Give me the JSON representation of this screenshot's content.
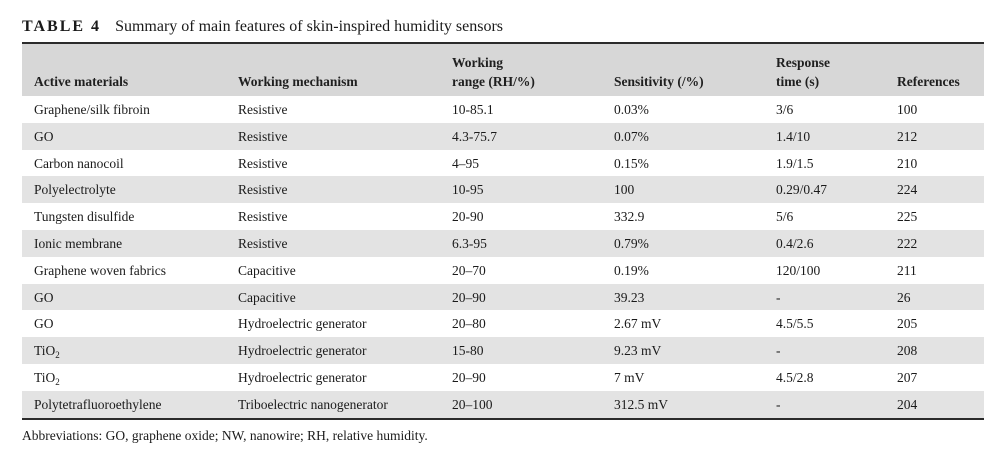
{
  "caption": {
    "label": "TABLE 4",
    "title": "Summary of main features of skin-inspired humidity sensors"
  },
  "headers": {
    "active_materials": "Active materials",
    "working_mechanism": "Working mechanism",
    "working_range_line1": "Working",
    "working_range_line2": "range (RH/%)",
    "sensitivity": "Sensitivity (/%)",
    "response_line1": "Response",
    "response_line2": "time (s)",
    "references": "References"
  },
  "rows": [
    {
      "material": "Graphene/silk fibroin",
      "material_sub": "",
      "mechanism": "Resistive",
      "range": "10-85.1",
      "sensitivity": "0.03%",
      "response": "3/6",
      "ref": "100"
    },
    {
      "material": "GO",
      "material_sub": "",
      "mechanism": "Resistive",
      "range": "4.3-75.7",
      "sensitivity": "0.07%",
      "response": "1.4/10",
      "ref": "212"
    },
    {
      "material": "Carbon nanocoil",
      "material_sub": "",
      "mechanism": "Resistive",
      "range": "4–95",
      "sensitivity": "0.15%",
      "response": "1.9/1.5",
      "ref": "210"
    },
    {
      "material": "Polyelectrolyte",
      "material_sub": "",
      "mechanism": "Resistive",
      "range": "10-95",
      "sensitivity": "100",
      "response": "0.29/0.47",
      "ref": "224"
    },
    {
      "material": "Tungsten disulfide",
      "material_sub": "",
      "mechanism": "Resistive",
      "range": "20-90",
      "sensitivity": "332.9",
      "response": "5/6",
      "ref": "225"
    },
    {
      "material": "Ionic membrane",
      "material_sub": "",
      "mechanism": "Resistive",
      "range": "6.3-95",
      "sensitivity": "0.79%",
      "response": "0.4/2.6",
      "ref": "222"
    },
    {
      "material": "Graphene woven fabrics",
      "material_sub": "",
      "mechanism": "Capacitive",
      "range": "20–70",
      "sensitivity": "0.19%",
      "response": "120/100",
      "ref": "211"
    },
    {
      "material": "GO",
      "material_sub": "",
      "mechanism": "Capacitive",
      "range": "20–90",
      "sensitivity": "39.23",
      "response": "-",
      "ref": "26"
    },
    {
      "material": "GO",
      "material_sub": "",
      "mechanism": "Hydroelectric generator",
      "range": "20–80",
      "sensitivity": "2.67 mV",
      "response": "4.5/5.5",
      "ref": "205"
    },
    {
      "material": "TiO",
      "material_sub": "2",
      "mechanism": "Hydroelectric generator",
      "range": "15-80",
      "sensitivity": "9.23 mV",
      "response": "-",
      "ref": "208"
    },
    {
      "material": "TiO",
      "material_sub": "2",
      "mechanism": "Hydroelectric generator",
      "range": "20–90",
      "sensitivity": "7 mV",
      "response": "4.5/2.8",
      "ref": "207"
    },
    {
      "material": "Polytetrafluoroethylene",
      "material_sub": "",
      "mechanism": "Triboelectric nanogenerator",
      "range": "20–100",
      "sensitivity": "312.5 mV",
      "response": "-",
      "ref": "204"
    }
  ],
  "footnote": "Abbreviations: GO, graphene oxide; NW, nanowire; RH, relative humidity.",
  "colors": {
    "header_bg": "#d7d7d7",
    "stripe_bg": "#e3e3e3",
    "rule": "#2b2b2b"
  }
}
